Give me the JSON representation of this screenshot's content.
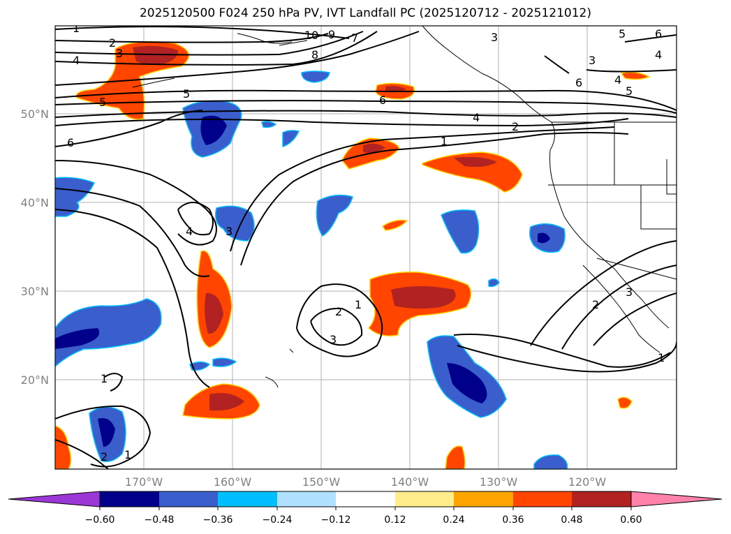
{
  "title": "2025120500 F024 250 hPa PV, IVT Landfall PC (2025120712 - 2025121012)",
  "map": {
    "lon_ticks": [
      "170°W",
      "160°W",
      "150°W",
      "140°W",
      "130°W",
      "120°W"
    ],
    "lat_ticks": [
      "50°N",
      "40°N",
      "30°N",
      "20°N"
    ],
    "background": "#ffffff",
    "grid_color": "#b0b0b0",
    "contour_color": "#000000",
    "contour_labels": [
      "1",
      "2",
      "3",
      "4",
      "5",
      "6",
      "7",
      "8",
      "9",
      "10"
    ]
  },
  "colorbar": {
    "ticks": [
      "−0.60",
      "−0.48",
      "−0.36",
      "−0.24",
      "−0.12",
      "0.12",
      "0.24",
      "0.36",
      "0.48",
      "0.60"
    ],
    "colors": [
      "#9a37d5",
      "#00008b",
      "#3a5fcd",
      "#00bfff",
      "#b0e2ff",
      "#ffffff",
      "#ffec8b",
      "#ffa500",
      "#ff4500",
      "#b22222",
      "#ff82ab"
    ]
  }
}
